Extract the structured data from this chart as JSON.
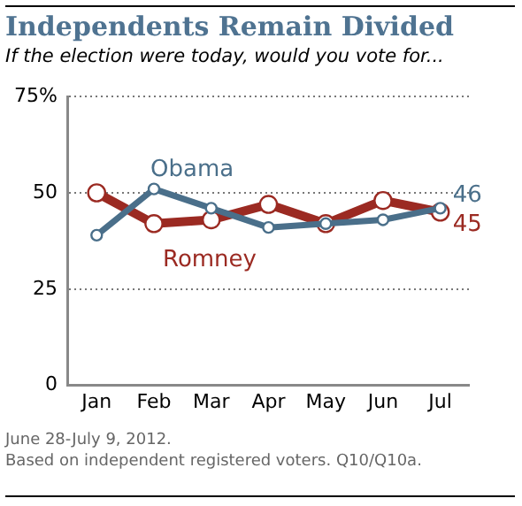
{
  "chart_data": {
    "type": "line",
    "title": "Independents Remain Divided",
    "subtitle": "If the election were today, would you vote for...",
    "categories": [
      "Jan",
      "Feb",
      "Mar",
      "Apr",
      "May",
      "Jun",
      "Jul"
    ],
    "ylim": [
      0,
      75
    ],
    "yticks": [
      0,
      25,
      50,
      {
        "value": 75,
        "label": "75%"
      }
    ],
    "grid": "y",
    "legend": false,
    "marker": "circle",
    "line_style": "solid",
    "series": [
      {
        "name": "Obama",
        "color": "#4a6f8a",
        "values": [
          39,
          51,
          46,
          41,
          42,
          43,
          46
        ],
        "value_labels": [
          null,
          null,
          null,
          null,
          null,
          null,
          "46"
        ]
      },
      {
        "name": "Romney",
        "color": "#9b2a22",
        "values": [
          50,
          42,
          43,
          47,
          42,
          48,
          45
        ],
        "value_labels": [
          null,
          null,
          null,
          null,
          null,
          null,
          "45"
        ]
      }
    ],
    "annotations": [
      "June 28-July 9, 2012.",
      "Based on independent registered voters. Q10/Q10a."
    ]
  }
}
